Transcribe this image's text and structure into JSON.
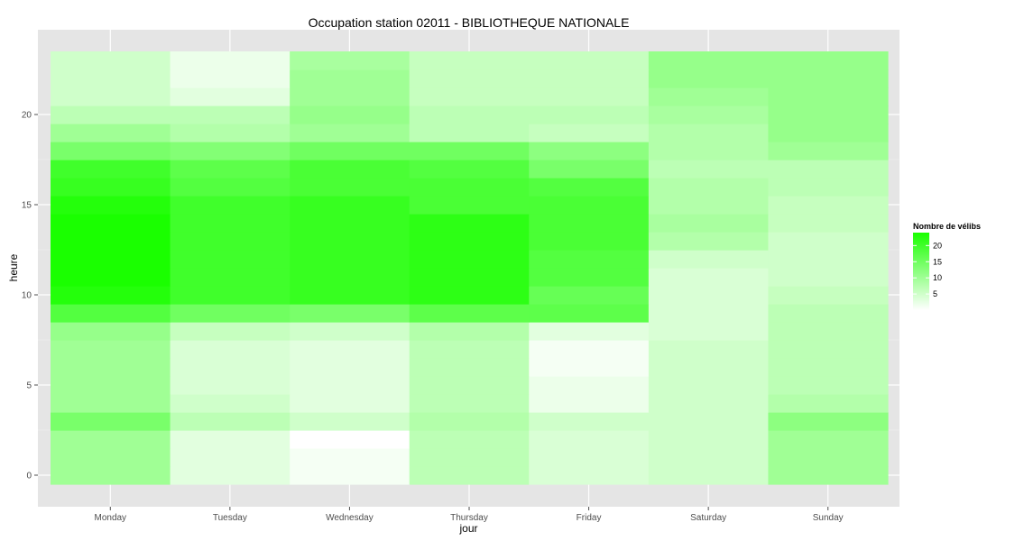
{
  "chart_data": {
    "type": "heatmap",
    "title": "Occupation station 02011 - BIBLIOTHEQUE NATIONALE",
    "xlabel": "jour",
    "ylabel": "heure",
    "x_categories": [
      "Monday",
      "Tuesday",
      "Wednesday",
      "Thursday",
      "Friday",
      "Saturday",
      "Sunday"
    ],
    "y_hours": [
      0,
      1,
      2,
      3,
      4,
      5,
      6,
      7,
      8,
      9,
      10,
      11,
      12,
      13,
      14,
      15,
      16,
      17,
      18,
      19,
      20,
      21,
      22,
      23
    ],
    "y_ticks": [
      0,
      5,
      10,
      15,
      20
    ],
    "ylim": [
      -0.5,
      23.5
    ],
    "values": [
      [
        10,
        3,
        1,
        7,
        4,
        5,
        10
      ],
      [
        10,
        3,
        1,
        7,
        4,
        5,
        10
      ],
      [
        10,
        3,
        0,
        7,
        4,
        5,
        10
      ],
      [
        14,
        7,
        5,
        8,
        5,
        5,
        12
      ],
      [
        10,
        5,
        3,
        7,
        2,
        5,
        8
      ],
      [
        10,
        4,
        3,
        7,
        2,
        5,
        7
      ],
      [
        10,
        4,
        3,
        7,
        1,
        5,
        7
      ],
      [
        10,
        4,
        3,
        7,
        1,
        5,
        7
      ],
      [
        11,
        6,
        5,
        8,
        3,
        4,
        7
      ],
      [
        18,
        15,
        14,
        17,
        17,
        4,
        7
      ],
      [
        23,
        20,
        21,
        22,
        16,
        4,
        6
      ],
      [
        24,
        20,
        21,
        22,
        18,
        4,
        5
      ],
      [
        24,
        20,
        21,
        22,
        18,
        5,
        5
      ],
      [
        24,
        20,
        21,
        22,
        19,
        8,
        5
      ],
      [
        24,
        20,
        21,
        22,
        19,
        9,
        6
      ],
      [
        23,
        20,
        21,
        19,
        19,
        8,
        6
      ],
      [
        21,
        18,
        19,
        19,
        18,
        8,
        7
      ],
      [
        20,
        17,
        19,
        18,
        14,
        7,
        7
      ],
      [
        14,
        13,
        15,
        15,
        12,
        8,
        10
      ],
      [
        10,
        8,
        10,
        7,
        6,
        8,
        11
      ],
      [
        7,
        7,
        11,
        7,
        7,
        9,
        11
      ],
      [
        5,
        3,
        10,
        6,
        6,
        10,
        11
      ],
      [
        5,
        2,
        10,
        6,
        6,
        11,
        11
      ],
      [
        5,
        2,
        9,
        6,
        6,
        11,
        11
      ]
    ],
    "color_scale": {
      "low": "#ffffff",
      "high": "#1aff00",
      "min": 0,
      "max": 24
    },
    "legend": {
      "title": "Nombre de vélibs",
      "ticks": [
        5,
        10,
        15,
        20
      ],
      "placement": "right"
    },
    "grid": true,
    "panel_background": "#e5e5e5"
  }
}
